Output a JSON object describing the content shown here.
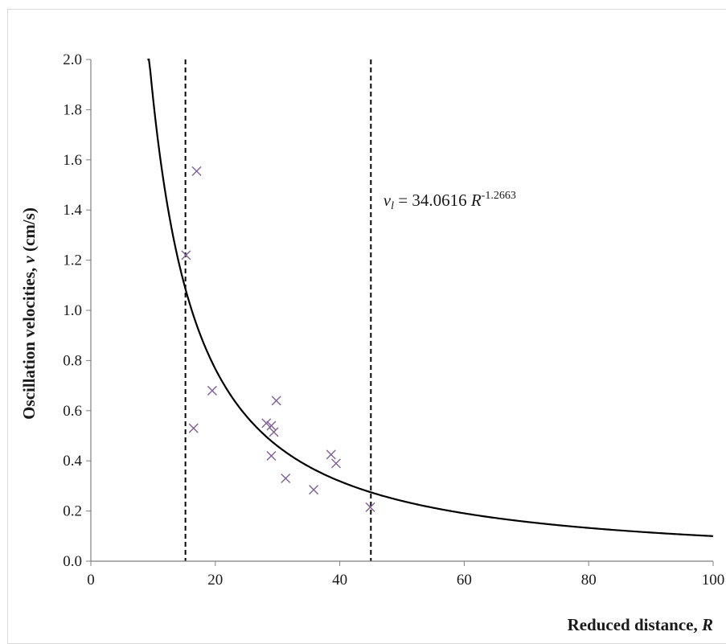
{
  "chart_data": {
    "type": "scatter",
    "title": "",
    "xlabel": "Reduced distance, R",
    "xlabel_text": "Reduced distance, ",
    "xlabel_var": "R",
    "ylabel": "Oscillation  velocities, v (cm/s)",
    "ylabel_text": "Oscillation  velocities, ",
    "ylabel_var": "v",
    "ylabel_unit": " (cm/s)",
    "xlim": [
      0,
      100
    ],
    "ylim": [
      0,
      2.0
    ],
    "x_ticks": [
      0,
      20,
      40,
      60,
      80,
      100
    ],
    "x_tick_labels": [
      "0",
      "20",
      "40",
      "60",
      "80",
      "100"
    ],
    "y_ticks": [
      0,
      0.2,
      0.4,
      0.6,
      0.8,
      1.0,
      1.2,
      1.4,
      1.6,
      1.8,
      2.0
    ],
    "y_tick_labels": [
      "0.0",
      "0.2",
      "0.4",
      "0.6",
      "0.8",
      "1.0",
      "1.2",
      "1.4",
      "1.6",
      "1.8",
      "2.0"
    ],
    "grid": false,
    "series": [
      {
        "marker": "x",
        "color": "#7f6094",
        "points": [
          {
            "x": 17.0,
            "y": 1.555
          },
          {
            "x": 15.3,
            "y": 1.22
          },
          {
            "x": 19.5,
            "y": 0.68
          },
          {
            "x": 16.5,
            "y": 0.53
          },
          {
            "x": 28.2,
            "y": 0.55
          },
          {
            "x": 29.0,
            "y": 0.54
          },
          {
            "x": 29.4,
            "y": 0.515
          },
          {
            "x": 29.8,
            "y": 0.64
          },
          {
            "x": 29.0,
            "y": 0.42
          },
          {
            "x": 31.3,
            "y": 0.33
          },
          {
            "x": 35.8,
            "y": 0.285
          },
          {
            "x": 38.6,
            "y": 0.425
          },
          {
            "x": 39.4,
            "y": 0.39
          },
          {
            "x": 44.9,
            "y": 0.215
          }
        ]
      }
    ],
    "fit_curve": {
      "coefficient": 34.0616,
      "exponent": -1.2663,
      "x_range": [
        9.1,
        100
      ],
      "color": "#000000"
    },
    "vertical_lines": [
      {
        "x": 15.2,
        "style": "dashed"
      },
      {
        "x": 45.0,
        "style": "dashed"
      }
    ],
    "annotation": {
      "var": "v",
      "sub": "l",
      "equals": " = 34.0616 ",
      "rvar": "R",
      "sup": "-1.2663",
      "anchor_x": 47.0,
      "anchor_y": 1.4
    }
  }
}
